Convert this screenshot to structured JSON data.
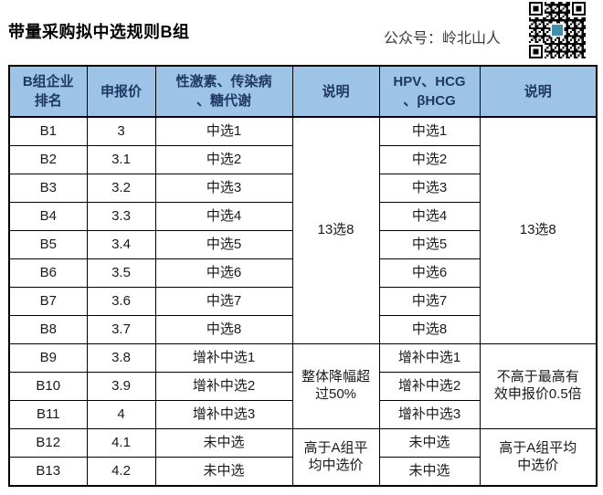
{
  "page": {
    "title": "带量采购拟中选规则B组",
    "account": "公众号：岭北山人"
  },
  "icons": {
    "qr": "qr-code"
  },
  "colors": {
    "header_bg": "#9DC3E6",
    "header_text": "#1F3864",
    "body_text": "#1a1a1a",
    "border": "#000000",
    "qr_logo": "#3f8fae"
  },
  "table": {
    "headers": [
      "B组企业\n排名",
      "申报价",
      "性激素、传染病\n、糖代谢",
      "说明",
      "HPV、HCG\n、βHCG",
      "说明"
    ],
    "rows": [
      {
        "rank": "B1",
        "price": "3",
        "group1": "中选1",
        "group2": "中选1"
      },
      {
        "rank": "B2",
        "price": "3.1",
        "group1": "中选2",
        "group2": "中选2"
      },
      {
        "rank": "B3",
        "price": "3.2",
        "group1": "中选3",
        "group2": "中选3"
      },
      {
        "rank": "B4",
        "price": "3.3",
        "group1": "中选4",
        "group2": "中选4"
      },
      {
        "rank": "B5",
        "price": "3.4",
        "group1": "中选5",
        "group2": "中选5"
      },
      {
        "rank": "B6",
        "price": "3.5",
        "group1": "中选6",
        "group2": "中选6"
      },
      {
        "rank": "B7",
        "price": "3.6",
        "group1": "中选7",
        "group2": "中选7"
      },
      {
        "rank": "B8",
        "price": "3.7",
        "group1": "中选8",
        "group2": "中选8"
      },
      {
        "rank": "B9",
        "price": "3.8",
        "group1": "增补中选1",
        "group2": "增补中选1"
      },
      {
        "rank": "B10",
        "price": "3.9",
        "group1": "增补中选2",
        "group2": "增补中选2"
      },
      {
        "rank": "B11",
        "price": "4",
        "group1": "增补中选3",
        "group2": "增补中选3"
      },
      {
        "rank": "B12",
        "price": "4.1",
        "group1": "未中选",
        "group2": "未中选"
      },
      {
        "rank": "B13",
        "price": "4.2",
        "group1": "未中选",
        "group2": "未中选"
      }
    ],
    "notes1": {
      "win": "13选8",
      "supplement": "整体降幅超\n过50%",
      "fail": "高于A组平\n均中选价"
    },
    "notes2": {
      "win": "13选8",
      "supplement": "不高于最高有\n效申报价0.5倍",
      "fail": "高于A组平均\n中选价"
    }
  }
}
